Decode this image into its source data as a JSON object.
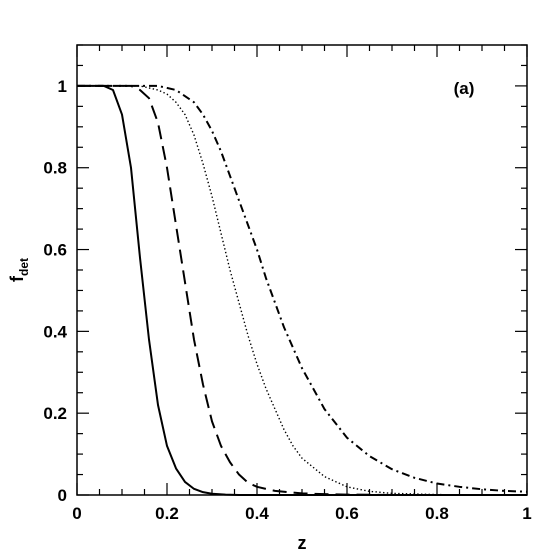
{
  "chart_data": {
    "type": "line",
    "title": "",
    "annotation": "(a)",
    "xlabel": "z",
    "ylabel_main": "f",
    "ylabel_sub": "det",
    "xlim": [
      0,
      1
    ],
    "ylim": [
      0,
      1.1
    ],
    "x_ticks": [
      "0",
      "0.2",
      "0.4",
      "0.6",
      "0.8",
      "1"
    ],
    "y_ticks": [
      "0",
      "0.2",
      "0.4",
      "0.6",
      "0.8",
      "1"
    ],
    "grid": false,
    "legend": "none",
    "series": [
      {
        "style": "solid",
        "x": [
          0,
          0.06,
          0.08,
          0.1,
          0.12,
          0.14,
          0.16,
          0.18,
          0.2,
          0.22,
          0.24,
          0.26,
          0.28,
          0.3,
          0.33,
          0.36,
          0.4,
          0.45,
          0.5,
          0.6,
          0.8,
          1.0
        ],
        "y": [
          1.0,
          1.0,
          0.99,
          0.93,
          0.8,
          0.58,
          0.38,
          0.22,
          0.12,
          0.065,
          0.032,
          0.015,
          0.007,
          0.003,
          0.001,
          0,
          0,
          0,
          0,
          0,
          0,
          0
        ]
      },
      {
        "style": "dashed",
        "x": [
          0,
          0.12,
          0.14,
          0.16,
          0.18,
          0.2,
          0.22,
          0.24,
          0.26,
          0.28,
          0.3,
          0.32,
          0.34,
          0.36,
          0.38,
          0.4,
          0.44,
          0.5,
          0.55,
          0.6,
          0.7,
          0.8,
          1.0
        ],
        "y": [
          1.0,
          1.0,
          0.99,
          0.97,
          0.91,
          0.8,
          0.66,
          0.52,
          0.38,
          0.27,
          0.18,
          0.12,
          0.08,
          0.05,
          0.03,
          0.02,
          0.01,
          0.004,
          0.002,
          0.001,
          0,
          0,
          0
        ]
      },
      {
        "style": "dotted",
        "x": [
          0,
          0.14,
          0.18,
          0.2,
          0.22,
          0.24,
          0.26,
          0.28,
          0.3,
          0.32,
          0.34,
          0.36,
          0.38,
          0.4,
          0.42,
          0.44,
          0.46,
          0.48,
          0.5,
          0.55,
          0.6,
          0.65,
          0.7,
          0.8,
          0.9,
          1.0
        ],
        "y": [
          1.0,
          1.0,
          0.99,
          0.98,
          0.96,
          0.93,
          0.88,
          0.81,
          0.73,
          0.64,
          0.55,
          0.47,
          0.39,
          0.32,
          0.26,
          0.21,
          0.16,
          0.12,
          0.09,
          0.045,
          0.02,
          0.009,
          0.004,
          0.001,
          0,
          0
        ]
      },
      {
        "style": "dashdot",
        "x": [
          0,
          0.18,
          0.22,
          0.26,
          0.28,
          0.3,
          0.32,
          0.34,
          0.36,
          0.38,
          0.4,
          0.42,
          0.44,
          0.46,
          0.48,
          0.5,
          0.55,
          0.6,
          0.65,
          0.7,
          0.75,
          0.8,
          0.85,
          0.9,
          0.95,
          1.0
        ],
        "y": [
          1.0,
          1.0,
          0.99,
          0.96,
          0.93,
          0.89,
          0.84,
          0.78,
          0.72,
          0.66,
          0.6,
          0.53,
          0.47,
          0.41,
          0.36,
          0.31,
          0.21,
          0.14,
          0.095,
          0.063,
          0.042,
          0.028,
          0.02,
          0.014,
          0.01,
          0.008
        ]
      }
    ]
  }
}
